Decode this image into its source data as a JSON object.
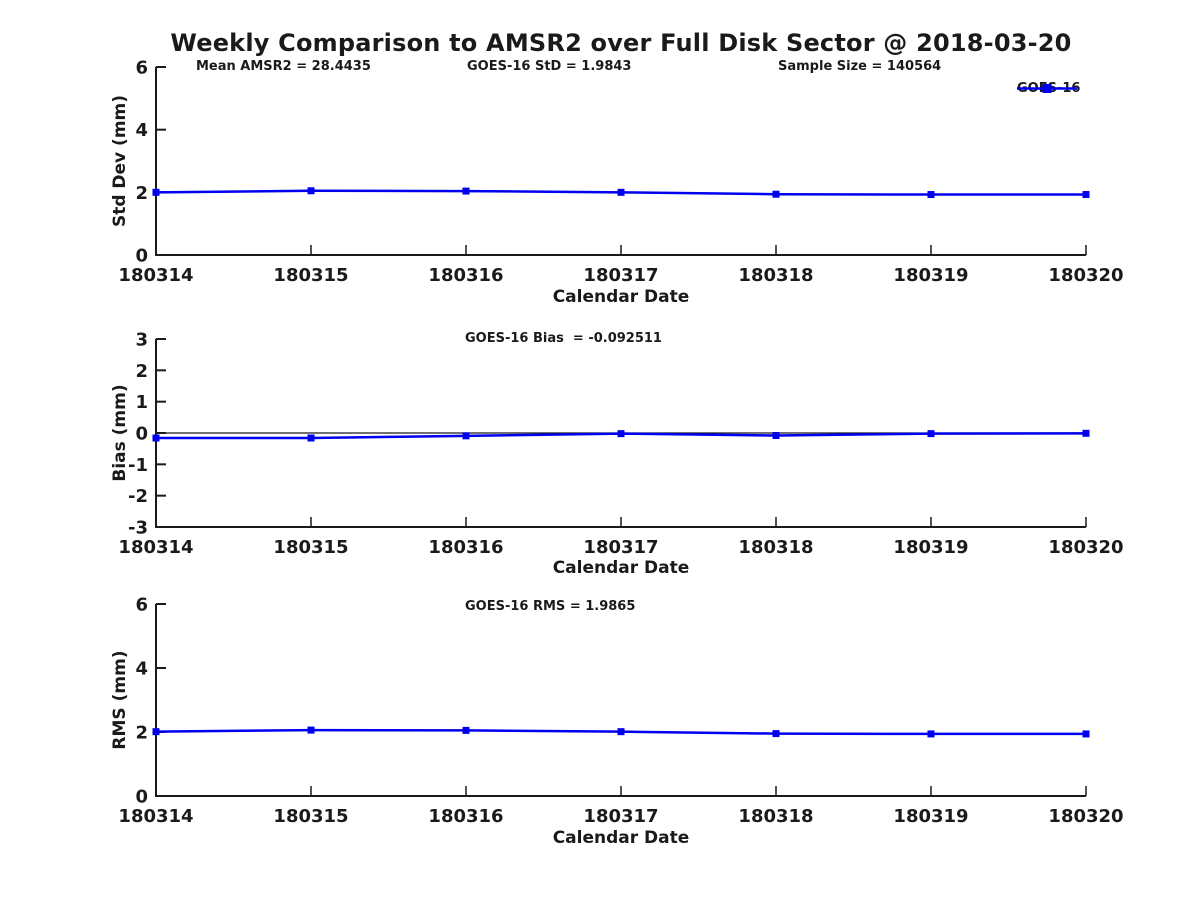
{
  "figure": {
    "title": "Weekly Comparison to AMSR2 over Full Disk Sector @ 2018-03-20",
    "background": "#ffffff",
    "axis_color": "#1a1a1a"
  },
  "annotations": {
    "mean_amsr2": "Mean AMSR2 = 28.4435",
    "goes16_std": "GOES-16 StD = 1.9843",
    "sample_size": "Sample Size = 140564",
    "goes16_bias": "GOES-16 Bias  = -0.092511",
    "goes16_rms": "GOES-16 RMS = 1.9865"
  },
  "legend": {
    "label": "GOES-16",
    "color": "#0000ee",
    "marker": "square",
    "position": "top-right-outside"
  },
  "chart_data": [
    {
      "type": "line",
      "ylabel": "Std Dev (mm)",
      "xlabel": "Calendar Date",
      "categories": [
        "180314",
        "180315",
        "180316",
        "180317",
        "180318",
        "180319",
        "180320"
      ],
      "ylim": [
        0,
        6
      ],
      "yticks": [
        0,
        2,
        4,
        6
      ],
      "grid": false,
      "zero_line": false,
      "legend_entry": "GOES-16",
      "series": [
        {
          "name": "GOES-16",
          "color": "#0000ee",
          "marker": "square",
          "values": [
            2.0,
            2.05,
            2.04,
            2.0,
            1.94,
            1.93,
            1.93
          ]
        }
      ]
    },
    {
      "type": "line",
      "ylabel": "Bias (mm)",
      "xlabel": "Calendar Date",
      "categories": [
        "180314",
        "180315",
        "180316",
        "180317",
        "180318",
        "180319",
        "180320"
      ],
      "ylim": [
        -3,
        3
      ],
      "yticks": [
        -3,
        -2,
        -1,
        0,
        1,
        2,
        3
      ],
      "grid": false,
      "zero_line": true,
      "series": [
        {
          "name": "GOES-16",
          "color": "#0000ee",
          "marker": "square",
          "values": [
            -0.16,
            -0.16,
            -0.09,
            -0.02,
            -0.08,
            -0.02,
            -0.01
          ]
        }
      ]
    },
    {
      "type": "line",
      "ylabel": "RMS (mm)",
      "xlabel": "Calendar Date",
      "categories": [
        "180314",
        "180315",
        "180316",
        "180317",
        "180318",
        "180319",
        "180320"
      ],
      "ylim": [
        0,
        6
      ],
      "yticks": [
        0,
        2,
        4,
        6
      ],
      "grid": false,
      "zero_line": false,
      "series": [
        {
          "name": "GOES-16",
          "color": "#0000ee",
          "marker": "square",
          "values": [
            2.01,
            2.06,
            2.05,
            2.01,
            1.95,
            1.94,
            1.94
          ]
        }
      ]
    }
  ]
}
